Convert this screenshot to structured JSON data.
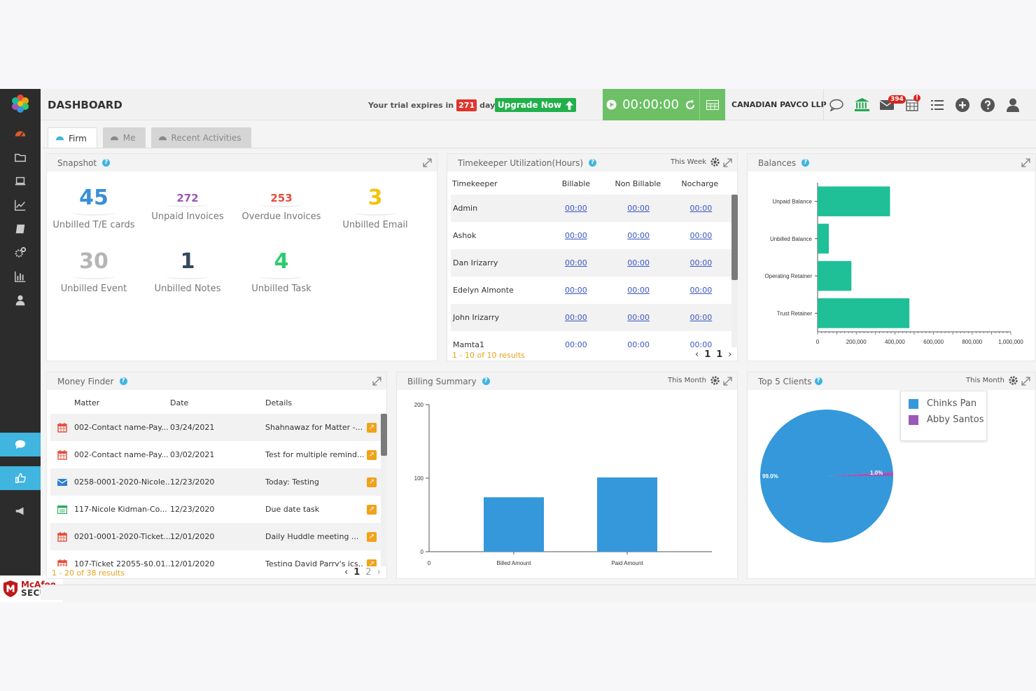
{
  "header": {
    "title": "DASHBOARD",
    "trial_prefix": "Your trial expires in",
    "trial_days": "271",
    "trial_suffix": "days.",
    "upgrade_label": "Upgrade Now",
    "timer": "00:00:00",
    "company": "CANADIAN PAVCO LLP",
    "email_badge": "394",
    "calendar_badge": "!"
  },
  "tabs": [
    {
      "label": "Firm",
      "active": true
    },
    {
      "label": "Me",
      "active": false
    },
    {
      "label": "Recent Activities",
      "active": false
    }
  ],
  "snapshot": {
    "title": "Snapshot",
    "items": [
      {
        "value": "45",
        "label": "Unbilled T/E cards",
        "color": "#3a8fd6"
      },
      {
        "value": "272",
        "label": "Unpaid Invoices",
        "color": "#9b59b6"
      },
      {
        "value": "253",
        "label": "Overdue Invoices",
        "color": "#e74c3c"
      },
      {
        "value": "3",
        "label": "Unbilled Email",
        "color": "#f1c40f"
      },
      {
        "value": "30",
        "label": "Unbilled Event",
        "color": "#b5b5b5"
      },
      {
        "value": "1",
        "label": "Unbilled Notes",
        "color": "#34495e"
      },
      {
        "value": "4",
        "label": "Unbilled Task",
        "color": "#2ecc71"
      }
    ]
  },
  "timekeeper": {
    "title": "Timekeeper Utilization(Hours)",
    "period": "This Week",
    "columns": [
      "Timekeeper",
      "Billable",
      "Non Billable",
      "Nocharge"
    ],
    "rows": [
      {
        "name": "Admin",
        "billable": "00:00",
        "non_billable": "00:00",
        "nocharge": "00:00"
      },
      {
        "name": "Ashok",
        "billable": "00:00",
        "non_billable": "00:00",
        "nocharge": "00:00"
      },
      {
        "name": "Dan Irizarry",
        "billable": "00:00",
        "non_billable": "00:00",
        "nocharge": "00:00"
      },
      {
        "name": "Edelyn Almonte",
        "billable": "00:00",
        "non_billable": "00:00",
        "nocharge": "00:00"
      },
      {
        "name": "John Irizarry",
        "billable": "00:00",
        "non_billable": "00:00",
        "nocharge": "00:00"
      },
      {
        "name": "Mamta1",
        "billable": "00:00",
        "non_billable": "00:00",
        "nocharge": "00:00"
      }
    ],
    "results": "1 - 10 of 10 results",
    "page_current": "1",
    "page_total": "1"
  },
  "balances": {
    "title": "Balances"
  },
  "money_finder": {
    "title": "Money Finder",
    "columns": [
      "Matter",
      "Date",
      "Details"
    ],
    "rows": [
      {
        "icon": "calendar-icon",
        "matter": "002-Contact name-Pay...",
        "date": "03/24/2021",
        "details": "Shahnawaz for Matter -..."
      },
      {
        "icon": "calendar-icon",
        "matter": "002-Contact name-Pay...",
        "date": "03/02/2021",
        "details": "Test for multiple remind..."
      },
      {
        "icon": "email-icon",
        "matter": "0258-0001-2020-Nicole...",
        "date": "12/23/2020",
        "details": "Today: Testing"
      },
      {
        "icon": "task-icon",
        "matter": "117-Nicole Kidman-Co...",
        "date": "12/23/2020",
        "details": "Due date task"
      },
      {
        "icon": "calendar-icon",
        "matter": "0201-0001-2020-Ticket...",
        "date": "12/01/2020",
        "details": "Daily Huddle meeting ..."
      },
      {
        "icon": "calendar-icon",
        "matter": "107-Ticket 22055-$0.01...",
        "date": "12/01/2020",
        "details": "Testing David Parry's ics..."
      }
    ],
    "results": "1 - 20 of 38 results",
    "page_current": "1",
    "page_next": "2"
  },
  "billing_summary": {
    "title": "Billing Summary",
    "period": "This Month"
  },
  "top_clients": {
    "title": "Top 5 Clients",
    "period": "This Month"
  },
  "chart_data": [
    {
      "type": "bar",
      "orientation": "horizontal",
      "categories": [
        "Unpaid Balance",
        "Unbilled Balance",
        "Operating Retainer",
        "Trust Retainer"
      ],
      "values": [
        375000,
        58000,
        175000,
        475000
      ],
      "xlim": [
        0,
        1000000
      ],
      "xticks": [
        "0",
        "200,000",
        "400,000",
        "600,000",
        "800,000",
        "1,000,000"
      ],
      "color": "#1fbf98"
    },
    {
      "type": "bar",
      "categories": [
        "Billed Amount",
        "Paid Amount"
      ],
      "values": [
        74,
        101
      ],
      "ylim": [
        0,
        200
      ],
      "yticks": [
        "0",
        "100",
        "200"
      ],
      "x_origin_label": "0",
      "color": "#3498db"
    },
    {
      "type": "pie",
      "labels": [
        "Chinks Pan",
        "Abby Santos"
      ],
      "values": [
        99.0,
        1.0
      ],
      "value_labels": [
        "99.0%",
        "1.0%"
      ],
      "colors": [
        "#3498db",
        "#9b59b6"
      ],
      "legend": "top-right"
    }
  ],
  "sidebar": {
    "items": [
      "dashboard-icon",
      "folder-icon",
      "laptop-icon",
      "chart-line-icon",
      "book-icon",
      "gears-icon",
      "bar-chart-icon",
      "user-icon"
    ]
  },
  "badge": {
    "line1": "McAfee",
    "line2": "SECURE"
  }
}
